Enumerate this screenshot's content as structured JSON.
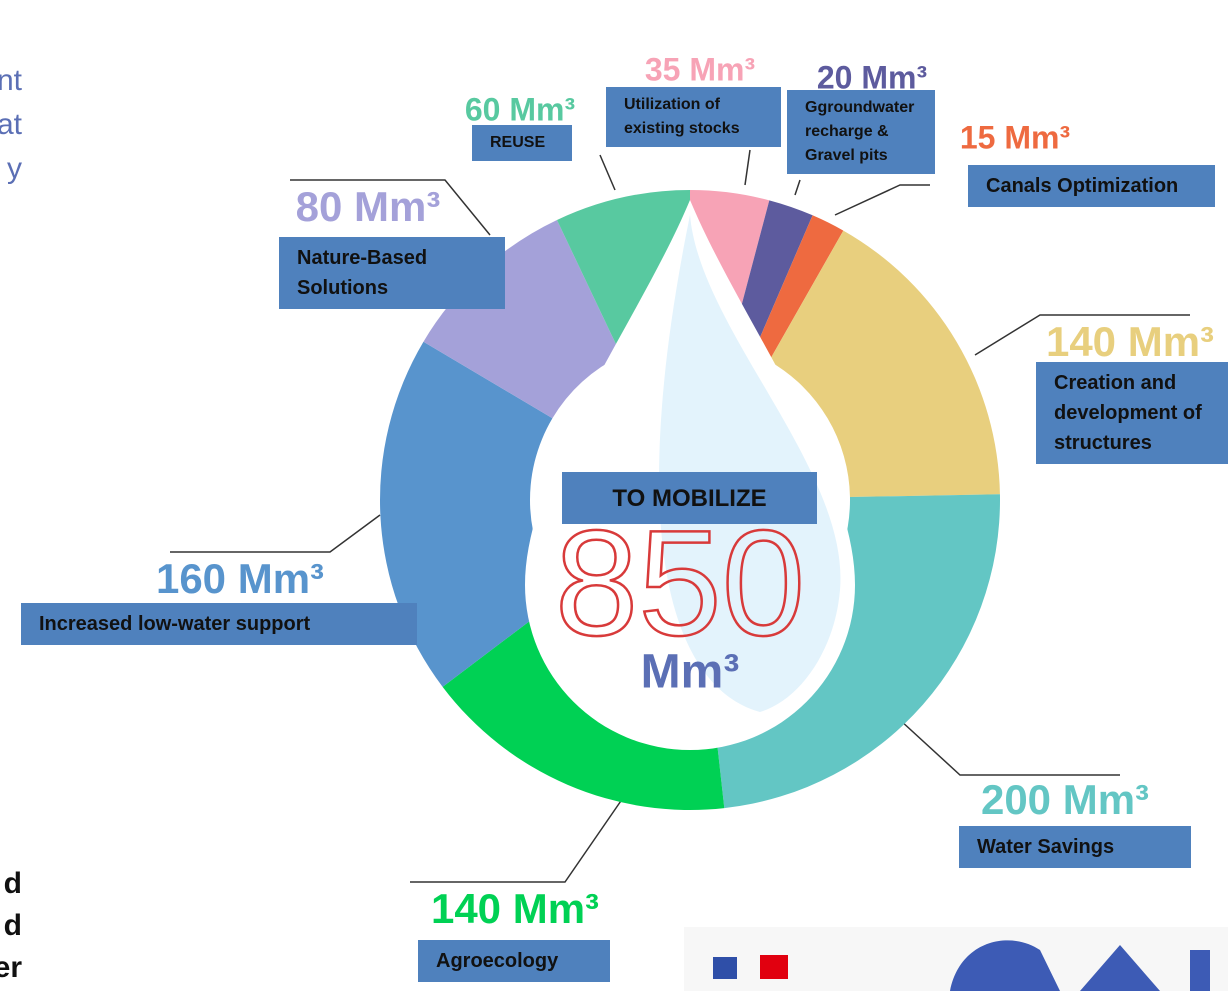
{
  "chart_data": {
    "type": "donut",
    "categories": [
      "Utilization of existing stocks",
      "Ggroundwater recharge & Gravel pits",
      "Canals Optimization",
      "Creation and development of structures",
      "Water Savings",
      "Agroecology",
      "Increased low-water support",
      "Nature-Based Solutions",
      "REUSE"
    ],
    "values": [
      35,
      20,
      15,
      140,
      200,
      140,
      160,
      80,
      60
    ],
    "value_labels": [
      "35 Mm³",
      "20 Mm³",
      "15 Mm³",
      "140 Mm³",
      "200 Mm³",
      "140 Mm³",
      "160 Mm³",
      "80 Mm³",
      "60 Mm³"
    ],
    "colors": [
      "#f7a3b6",
      "#5d5b9e",
      "#ee6a40",
      "#e8cf7e",
      "#63c6c4",
      "#00d154",
      "#5894cd",
      "#a4a1d9",
      "#58c9a0"
    ],
    "center_label": "TO MOBILIZE",
    "total": 850,
    "total_unit": "Mm³",
    "side_text_top": [
      "nt",
      "at",
      "y"
    ],
    "side_text_bottom": [
      "d",
      "d",
      "er"
    ]
  }
}
